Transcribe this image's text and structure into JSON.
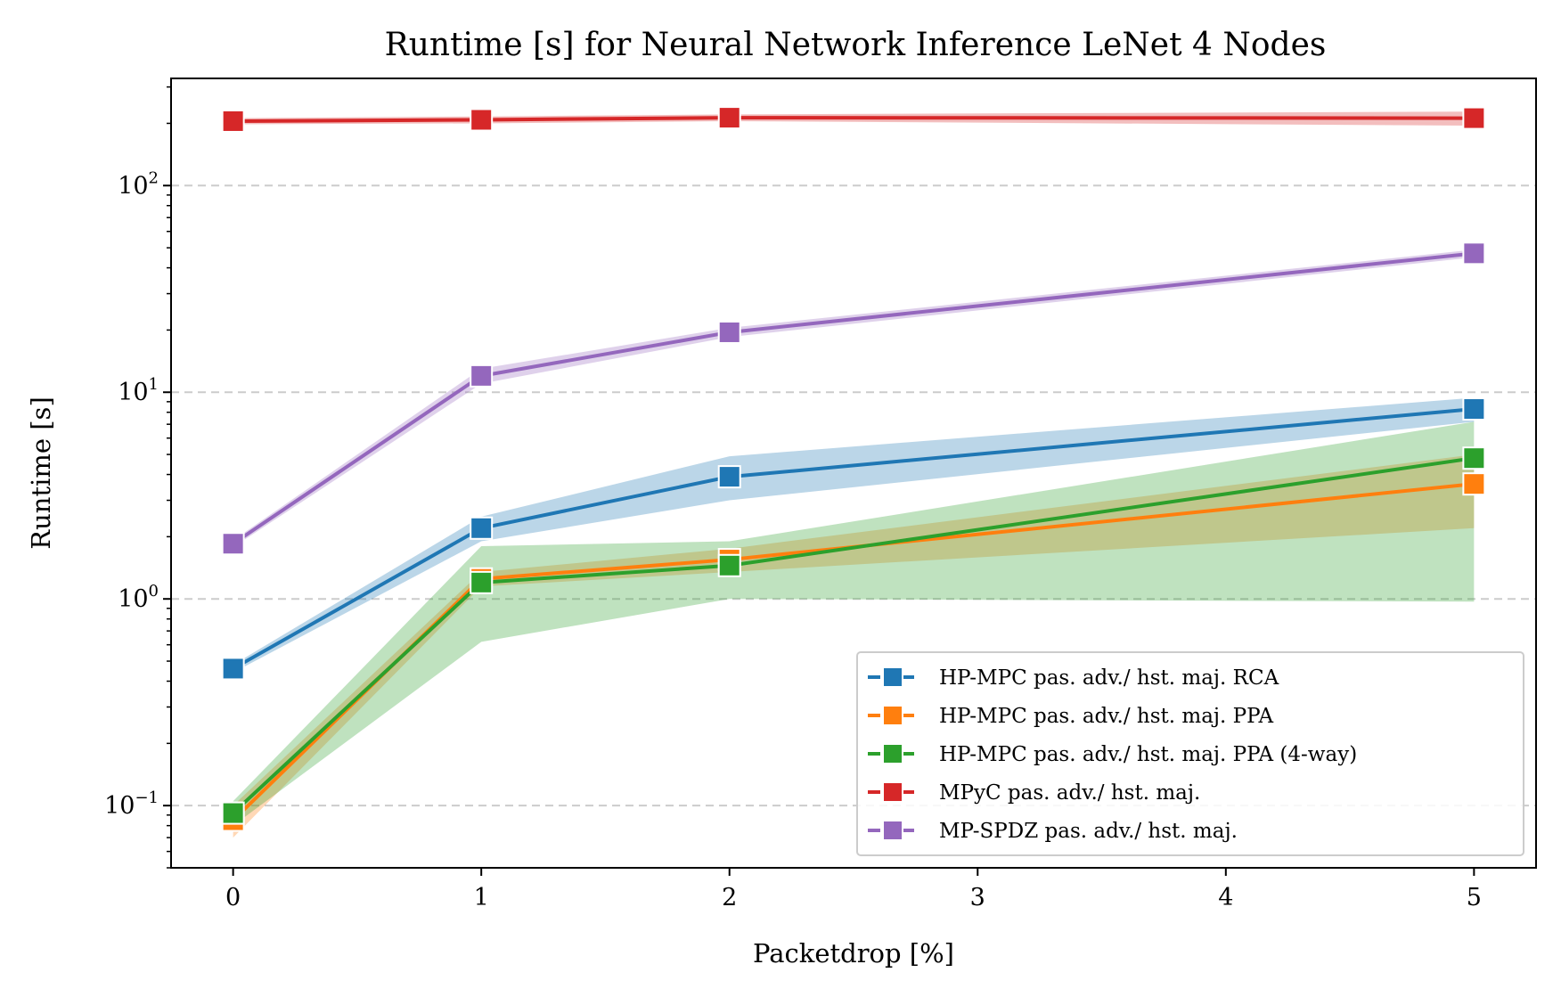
{
  "chart_data": {
    "type": "line",
    "title": "Runtime [s] for Neural Network Inference LeNet 4 Nodes",
    "xlabel": "Packetdrop [%]",
    "ylabel": "Runtime [s]",
    "y_scale": "log",
    "xlim": [
      -0.25,
      5.25
    ],
    "ylim": [
      0.05,
      330
    ],
    "x_ticks": [
      0,
      1,
      2,
      3,
      4,
      5
    ],
    "x_tick_labels": [
      "0",
      "1",
      "2",
      "3",
      "4",
      "5"
    ],
    "y_ticks": [
      {
        "value": 0.1,
        "base": "10",
        "exp": "−1"
      },
      {
        "value": 1,
        "base": "10",
        "exp": "0"
      },
      {
        "value": 10,
        "base": "10",
        "exp": "1"
      },
      {
        "value": 100,
        "base": "10",
        "exp": "2"
      }
    ],
    "grid": "y-major-dashed",
    "legend_position": "lower-right",
    "series": [
      {
        "name": "HP-MPC pas. adv./ hst. maj. RCA",
        "color": "#1f77b4",
        "x": [
          0,
          1,
          2,
          5
        ],
        "y": [
          0.46,
          2.2,
          3.9,
          8.3
        ],
        "y_low": [
          0.44,
          1.9,
          3.0,
          7.2
        ],
        "y_high": [
          0.48,
          2.5,
          4.9,
          9.4
        ]
      },
      {
        "name": "HP-MPC pas. adv./ hst. maj. PPA",
        "color": "#ff7f0e",
        "x": [
          0,
          1,
          2,
          5
        ],
        "y": [
          0.085,
          1.25,
          1.55,
          3.6
        ],
        "y_low": [
          0.07,
          1.15,
          1.35,
          2.2
        ],
        "y_high": [
          0.1,
          1.35,
          1.75,
          5.0
        ]
      },
      {
        "name": "HP-MPC pas. adv./ hst. maj. PPA (4-way)",
        "color": "#2ca02c",
        "x": [
          0,
          1,
          2,
          5
        ],
        "y": [
          0.092,
          1.2,
          1.45,
          4.8
        ],
        "y_low": [
          0.08,
          0.62,
          1.0,
          0.97
        ],
        "y_high": [
          0.105,
          1.8,
          1.9,
          7.2
        ]
      },
      {
        "name": "MPyC pas. adv./ hst. maj.",
        "color": "#d62728",
        "x": [
          0,
          1,
          2,
          5
        ],
        "y": [
          205,
          208,
          213,
          212
        ],
        "y_low": [
          198,
          200,
          205,
          195
        ],
        "y_high": [
          212,
          216,
          221,
          228
        ]
      },
      {
        "name": "MP-SPDZ pas. adv./ hst. maj.",
        "color": "#9467bd",
        "x": [
          0,
          1,
          2,
          5
        ],
        "y": [
          1.85,
          12,
          19.5,
          47
        ],
        "y_low": [
          1.78,
          11,
          18.5,
          45
        ],
        "y_high": [
          1.92,
          13,
          20.5,
          49
        ]
      }
    ]
  }
}
